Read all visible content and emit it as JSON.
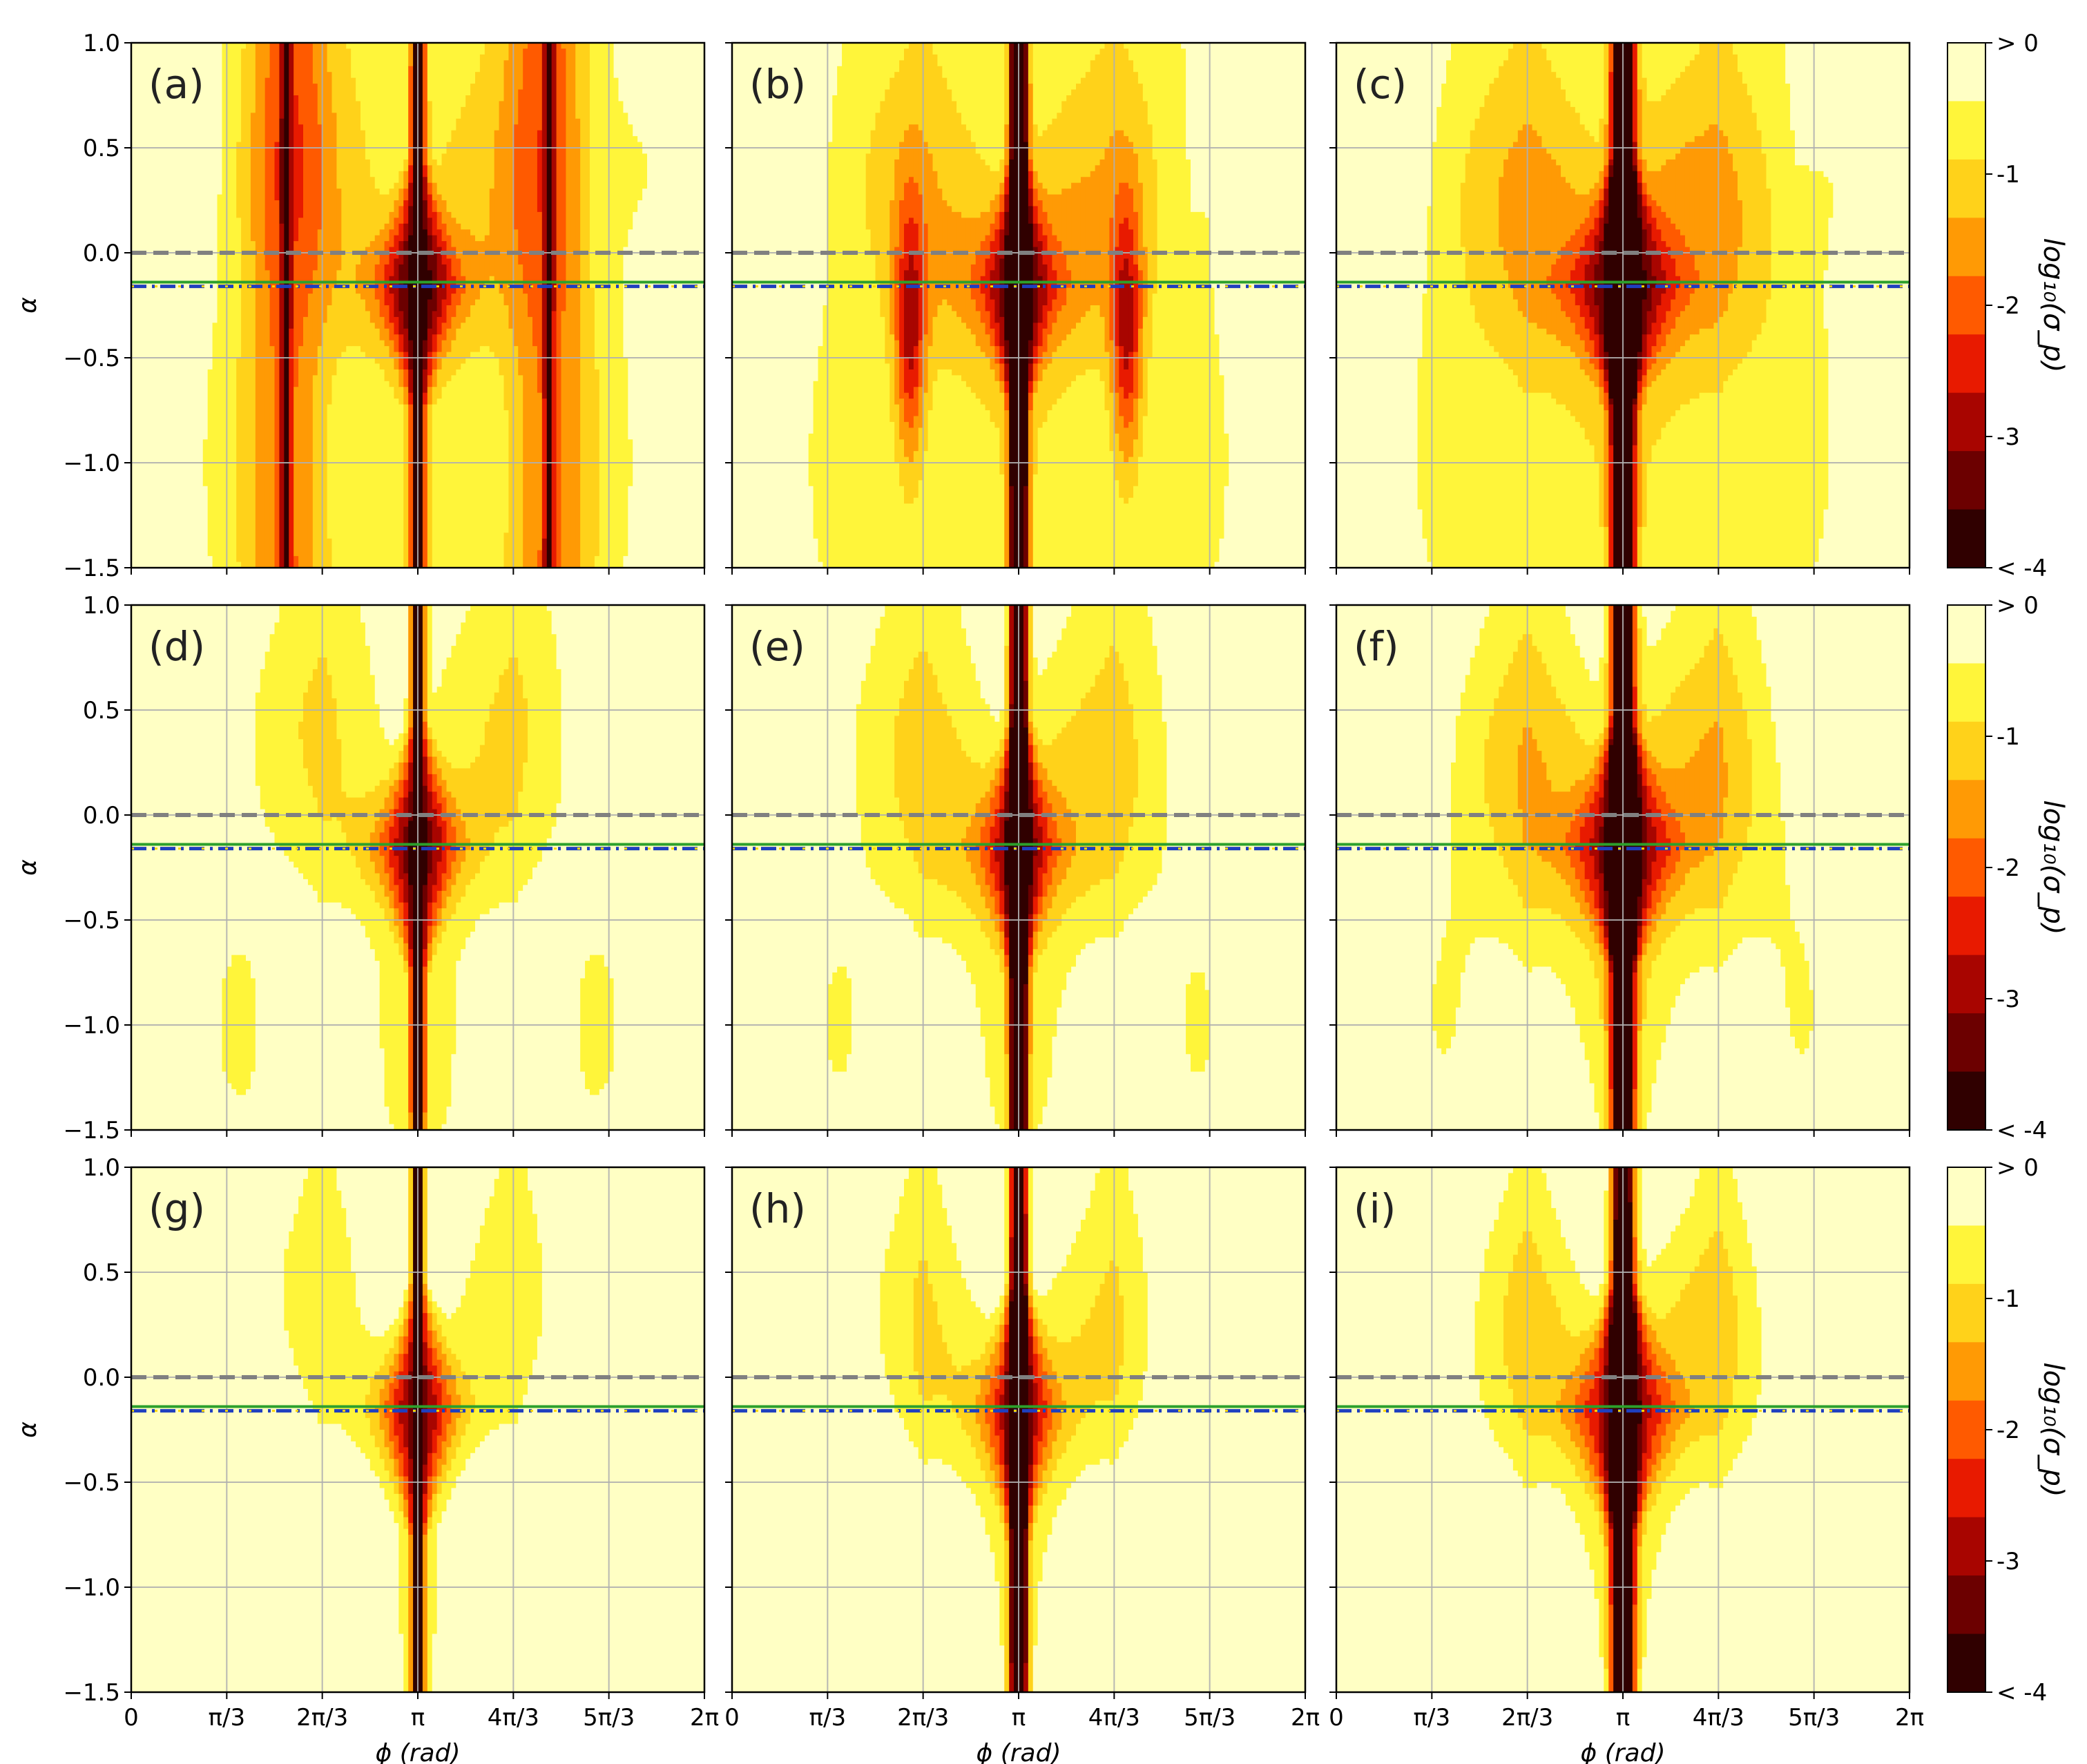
{
  "chart_data": {
    "type": "heatmap",
    "layout": "3x3 grid of contour-map panels with a shared colorbar per row",
    "panels": [
      {
        "label": "(a)",
        "variant": 0
      },
      {
        "label": "(b)",
        "variant": 1
      },
      {
        "label": "(c)",
        "variant": 2
      },
      {
        "label": "(d)",
        "variant": 3
      },
      {
        "label": "(e)",
        "variant": 4
      },
      {
        "label": "(f)",
        "variant": 5
      },
      {
        "label": "(g)",
        "variant": 6
      },
      {
        "label": "(h)",
        "variant": 7
      },
      {
        "label": "(i)",
        "variant": 8
      }
    ],
    "xlabel": "ϕ (rad)",
    "ylabel": "α",
    "xlim": [
      0,
      6.2832
    ],
    "ylim": [
      -1.5,
      1.0
    ],
    "xticks": [
      {
        "value": 0,
        "label": "0"
      },
      {
        "value": 1.0472,
        "label": "π/3"
      },
      {
        "value": 2.0944,
        "label": "2π/3"
      },
      {
        "value": 3.1416,
        "label": "π"
      },
      {
        "value": 4.1888,
        "label": "4π/3"
      },
      {
        "value": 5.236,
        "label": "5π/3"
      },
      {
        "value": 6.2832,
        "label": "2π"
      }
    ],
    "yticks": [
      {
        "value": 1.0,
        "label": "1.0"
      },
      {
        "value": 0.5,
        "label": "0.5"
      },
      {
        "value": 0.0,
        "label": "0.0"
      },
      {
        "value": -0.5,
        "label": "−0.5"
      },
      {
        "value": -1.0,
        "label": "−1.0"
      },
      {
        "value": -1.5,
        "label": "−1.5"
      }
    ],
    "colorbar": {
      "label": "log₁₀(σ_p)",
      "ticks": [
        {
          "value": 0,
          "label": "> 0"
        },
        {
          "value": -1,
          "label": "-1"
        },
        {
          "value": -2,
          "label": "-2"
        },
        {
          "value": -3,
          "label": "-3"
        },
        {
          "value": -4,
          "label": "< -4"
        }
      ],
      "levels": [
        0,
        -0.5,
        -1,
        -1.5,
        -2,
        -2.5,
        -3,
        -3.5,
        -4
      ],
      "colors": [
        "#ffffc4",
        "#fff53a",
        "#ffd21a",
        "#ff9a05",
        "#ff5a00",
        "#e81a00",
        "#a80500",
        "#6c0000",
        "#300000"
      ]
    },
    "reference_lines": [
      {
        "alpha": 0.0,
        "style": "dashed",
        "color": "#808080"
      },
      {
        "alpha": -0.14,
        "style": "solid",
        "color": "#2ca02c"
      },
      {
        "alpha": -0.16,
        "style": "dash-dot",
        "color": "#1f3fbf"
      },
      {
        "alpha": -0.16,
        "style": "dotted",
        "color": "#ffd800"
      }
    ],
    "grid": true
  }
}
